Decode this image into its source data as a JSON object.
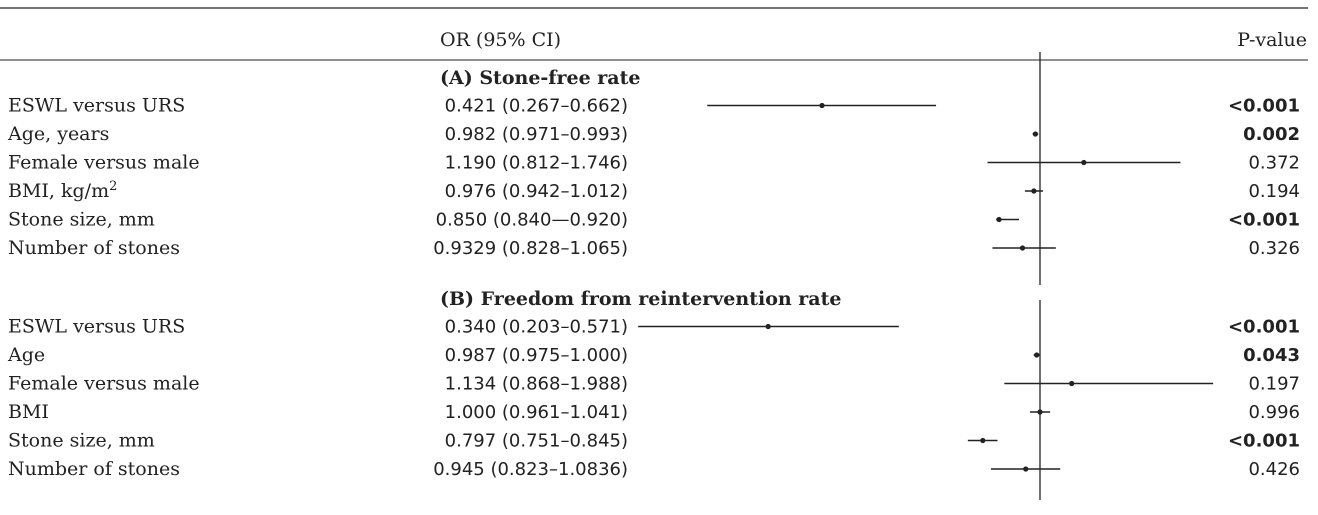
{
  "header": {
    "or_column": "OR (95% CI)",
    "p_column": "P-value"
  },
  "colors": {
    "ink": "#222222"
  },
  "chart_data": {
    "type": "forest",
    "reference_line": 1.0,
    "x_scale": "log",
    "xlim": [
      0.2,
      2.0
    ],
    "sections": [
      {
        "title": "(A) Stone-free rate",
        "rows": [
          {
            "label": "ESWL versus URS",
            "label_super": "",
            "or": 0.421,
            "lo": 0.267,
            "hi": 0.662,
            "ci_text": "0.421 (0.267–0.662)",
            "p": "<0.001",
            "p_bold": true
          },
          {
            "label": "Age, years",
            "label_super": "",
            "or": 0.982,
            "lo": 0.971,
            "hi": 0.993,
            "ci_text": "0.982 (0.971–0.993)",
            "p": "0.002",
            "p_bold": true
          },
          {
            "label": "Female versus male",
            "label_super": "",
            "or": 1.19,
            "lo": 0.812,
            "hi": 1.746,
            "ci_text": "1.190 (0.812–1.746)",
            "p": "0.372",
            "p_bold": false
          },
          {
            "label": "BMI, kg/m",
            "label_super": "2",
            "or": 0.976,
            "lo": 0.942,
            "hi": 1.012,
            "ci_text": "0.976 (0.942–1.012)",
            "p": "0.194",
            "p_bold": false
          },
          {
            "label": "Stone size, mm",
            "label_super": "",
            "or": 0.85,
            "lo": 0.84,
            "hi": 0.92,
            "ci_text": "0.850 (0.840—0.920)",
            "p": "<0.001",
            "p_bold": true
          },
          {
            "label": "Number of stones",
            "label_super": "",
            "or": 0.9329,
            "lo": 0.828,
            "hi": 1.065,
            "ci_text": "0.9329 (0.828–1.065)",
            "p": "0.326",
            "p_bold": false
          }
        ]
      },
      {
        "title": "(B) Freedom from reintervention rate",
        "rows": [
          {
            "label": "ESWL versus URS",
            "label_super": "",
            "or": 0.34,
            "lo": 0.203,
            "hi": 0.571,
            "ci_text": "0.340 (0.203–0.571)",
            "p": "<0.001",
            "p_bold": true
          },
          {
            "label": "Age",
            "label_super": "",
            "or": 0.987,
            "lo": 0.975,
            "hi": 1.0,
            "ci_text": "0.987 (0.975–1.000)",
            "p": "0.043",
            "p_bold": true
          },
          {
            "label": "Female versus male",
            "label_super": "",
            "or": 1.134,
            "lo": 0.868,
            "hi": 1.988,
            "ci_text": "1.134 (0.868–1.988)",
            "p": "0.197",
            "p_bold": false
          },
          {
            "label": "BMI",
            "label_super": "",
            "or": 1.0,
            "lo": 0.961,
            "hi": 1.041,
            "ci_text": "1.000 (0.961–1.041)",
            "p": "0.996",
            "p_bold": false
          },
          {
            "label": "Stone size, mm",
            "label_super": "",
            "or": 0.797,
            "lo": 0.751,
            "hi": 0.845,
            "ci_text": "0.797 (0.751–0.845)",
            "p": "<0.001",
            "p_bold": true
          },
          {
            "label": "Number of stones",
            "label_super": "",
            "or": 0.945,
            "lo": 0.823,
            "hi": 1.0836,
            "ci_text": "0.945 (0.823–1.0836)",
            "p": "0.426",
            "p_bold": false
          }
        ]
      }
    ]
  }
}
